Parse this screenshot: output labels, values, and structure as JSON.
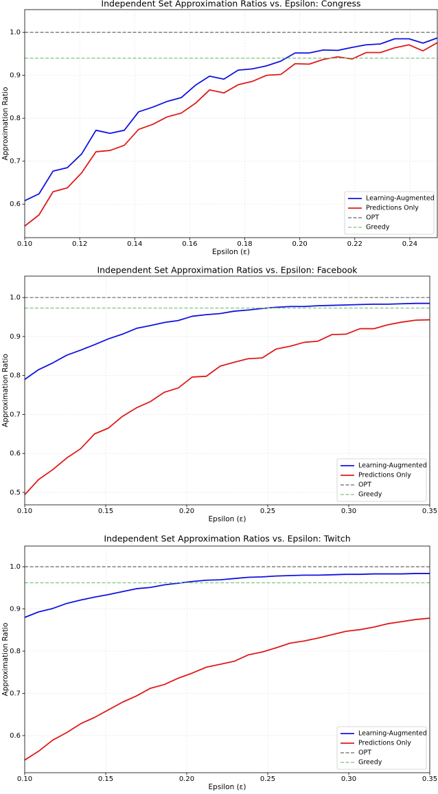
{
  "chart_data": [
    {
      "type": "line",
      "title": "Independent Set Approximation Ratios vs. Epsilon: Congress",
      "x_label": "Epsilon (ε)",
      "y_label": "Approximation Ratio",
      "x": [
        0.1,
        0.1052,
        0.1103,
        0.1155,
        0.1207,
        0.1259,
        0.131,
        0.1362,
        0.1414,
        0.1466,
        0.1517,
        0.1569,
        0.1621,
        0.1672,
        0.1724,
        0.1776,
        0.1828,
        0.1879,
        0.1931,
        0.1983,
        0.2034,
        0.2086,
        0.2138,
        0.219,
        0.2241,
        0.2293,
        0.2345,
        0.2397,
        0.2448,
        0.25
      ],
      "series": [
        {
          "name": "Learning-Augmented",
          "color": "#1010e0",
          "values": [
            0.608,
            0.624,
            0.677,
            0.685,
            0.717,
            0.772,
            0.765,
            0.772,
            0.815,
            0.826,
            0.839,
            0.848,
            0.877,
            0.898,
            0.891,
            0.912,
            0.915,
            0.922,
            0.933,
            0.952,
            0.952,
            0.959,
            0.958,
            0.965,
            0.971,
            0.973,
            0.985,
            0.985,
            0.975,
            0.987
          ]
        },
        {
          "name": "Predictions Only",
          "color": "#e01818",
          "values": [
            0.549,
            0.575,
            0.629,
            0.638,
            0.673,
            0.722,
            0.725,
            0.737,
            0.774,
            0.786,
            0.803,
            0.812,
            0.835,
            0.866,
            0.859,
            0.878,
            0.886,
            0.9,
            0.902,
            0.927,
            0.926,
            0.937,
            0.943,
            0.938,
            0.953,
            0.953,
            0.964,
            0.971,
            0.957,
            0.976
          ]
        },
        {
          "name": "OPT",
          "color": "#666666",
          "linestyle": "dashed",
          "value": 1.0
        },
        {
          "name": "Greedy",
          "color": "#7cc47c",
          "linestyle": "dashed",
          "value": 0.94
        }
      ],
      "xlim": [
        0.1,
        0.25
      ],
      "xticks": [
        {
          "value": 0.1,
          "label": "0.10"
        },
        0.12,
        0.14,
        0.16,
        0.18,
        {
          "value": 0.2,
          "label": "0.20"
        },
        0.22,
        0.24
      ],
      "ylim": [
        0.522,
        1.053
      ],
      "yticks": [
        0.6,
        0.7,
        0.8,
        0.9,
        {
          "value": 1.0,
          "label": "1.0"
        }
      ],
      "grid": true,
      "legend": "lower right"
    },
    {
      "type": "line",
      "title": "Independent Set Approximation Ratios vs. Epsilon: Facebook",
      "x_label": "Epsilon (ε)",
      "y_label": "Approximation Ratio",
      "x": [
        0.1,
        0.1086,
        0.1172,
        0.1259,
        0.1345,
        0.1431,
        0.1517,
        0.1603,
        0.169,
        0.1776,
        0.1862,
        0.1948,
        0.2034,
        0.2121,
        0.2207,
        0.2293,
        0.2379,
        0.2466,
        0.2552,
        0.2638,
        0.2724,
        0.281,
        0.2897,
        0.2983,
        0.3069,
        0.3155,
        0.3241,
        0.3328,
        0.3414,
        0.35
      ],
      "series": [
        {
          "name": "Learning-Augmented",
          "color": "#1010e0",
          "values": [
            0.79,
            0.815,
            0.832,
            0.852,
            0.865,
            0.879,
            0.894,
            0.906,
            0.921,
            0.928,
            0.936,
            0.941,
            0.952,
            0.956,
            0.959,
            0.965,
            0.968,
            0.972,
            0.975,
            0.977,
            0.977,
            0.979,
            0.98,
            0.981,
            0.982,
            0.983,
            0.983,
            0.984,
            0.985,
            0.985
          ]
        },
        {
          "name": "Predictions Only",
          "color": "#e01818",
          "values": [
            0.494,
            0.533,
            0.558,
            0.588,
            0.612,
            0.65,
            0.665,
            0.695,
            0.717,
            0.733,
            0.757,
            0.768,
            0.796,
            0.798,
            0.824,
            0.834,
            0.843,
            0.845,
            0.868,
            0.875,
            0.885,
            0.888,
            0.905,
            0.906,
            0.92,
            0.92,
            0.93,
            0.937,
            0.942,
            0.943
          ]
        },
        {
          "name": "OPT",
          "color": "#666666",
          "linestyle": "dashed",
          "value": 1.0
        },
        {
          "name": "Greedy",
          "color": "#7cc47c",
          "linestyle": "dashed",
          "value": 0.973
        }
      ],
      "xlim": [
        0.1,
        0.35
      ],
      "xticks": [
        {
          "value": 0.1,
          "label": "0.10"
        },
        0.15,
        {
          "value": 0.2,
          "label": "0.20"
        },
        0.25,
        {
          "value": 0.3,
          "label": "0.30"
        },
        0.35
      ],
      "ylim": [
        0.468,
        1.055
      ],
      "yticks": [
        0.5,
        0.6,
        0.7,
        0.8,
        0.9,
        {
          "value": 1.0,
          "label": "1.0"
        }
      ],
      "grid": true,
      "legend": "lower right"
    },
    {
      "type": "line",
      "title": "Independent Set Approximation Ratios vs. Epsilon: Twitch",
      "x_label": "Epsilon (ε)",
      "y_label": "Approximation Ratio",
      "x": [
        0.1,
        0.1086,
        0.1172,
        0.1259,
        0.1345,
        0.1431,
        0.1517,
        0.1603,
        0.169,
        0.1776,
        0.1862,
        0.1948,
        0.2034,
        0.2121,
        0.2207,
        0.2293,
        0.2379,
        0.2466,
        0.2552,
        0.2638,
        0.2724,
        0.281,
        0.2897,
        0.2983,
        0.3069,
        0.3155,
        0.3241,
        0.3328,
        0.3414,
        0.35
      ],
      "series": [
        {
          "name": "Learning-Augmented",
          "color": "#1010e0",
          "values": [
            0.88,
            0.893,
            0.901,
            0.913,
            0.921,
            0.928,
            0.934,
            0.941,
            0.948,
            0.951,
            0.957,
            0.961,
            0.965,
            0.968,
            0.969,
            0.972,
            0.975,
            0.976,
            0.978,
            0.979,
            0.98,
            0.98,
            0.981,
            0.982,
            0.982,
            0.983,
            0.983,
            0.983,
            0.984,
            0.984
          ]
        },
        {
          "name": "Predictions Only",
          "color": "#e01818",
          "values": [
            0.542,
            0.563,
            0.589,
            0.607,
            0.628,
            0.643,
            0.661,
            0.679,
            0.694,
            0.712,
            0.721,
            0.736,
            0.748,
            0.762,
            0.769,
            0.776,
            0.791,
            0.798,
            0.808,
            0.819,
            0.824,
            0.831,
            0.839,
            0.847,
            0.851,
            0.857,
            0.865,
            0.87,
            0.875,
            0.878
          ]
        },
        {
          "name": "OPT",
          "color": "#666666",
          "linestyle": "dashed",
          "value": 1.0
        },
        {
          "name": "Greedy",
          "color": "#7cc47c",
          "linestyle": "dashed",
          "value": 0.962
        }
      ],
      "xlim": [
        0.1,
        0.35
      ],
      "xticks": [
        {
          "value": 0.1,
          "label": "0.10"
        },
        0.15,
        {
          "value": 0.2,
          "label": "0.20"
        },
        0.25,
        {
          "value": 0.3,
          "label": "0.30"
        },
        0.35
      ],
      "ylim": [
        0.512,
        1.049
      ],
      "yticks": [
        0.6,
        0.7,
        0.8,
        0.9,
        {
          "value": 1.0,
          "label": "1.0"
        }
      ],
      "grid": true,
      "legend": "lower right"
    }
  ]
}
